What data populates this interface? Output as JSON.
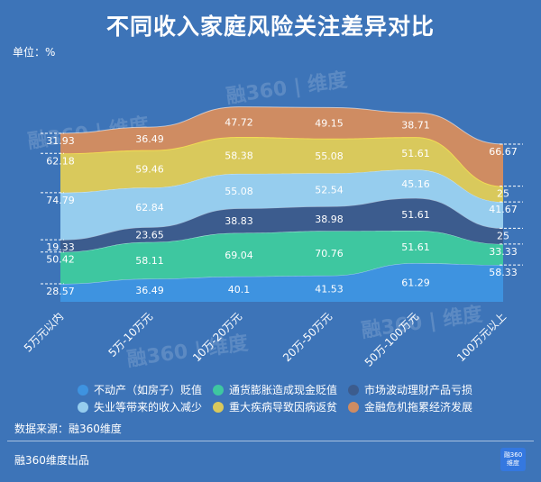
{
  "title": "不同收入家庭风险关注差异对比",
  "unit_label": "单位：%",
  "source_label": "数据来源：融360维度",
  "footer_label": "融360维度出品",
  "logo": {
    "line1": "融360",
    "line2": "维度"
  },
  "watermark": "融360 | 维度",
  "colors": {
    "background": "#3d74b8",
    "s1": "#3e93e0",
    "s2": "#3ec7a0",
    "s3": "#3c5c8e",
    "s4": "#96cdee",
    "s5": "#d9c95c",
    "s6": "#cf8c62"
  },
  "chart_data": {
    "type": "area",
    "stacked": true,
    "categories": [
      "5万元以内",
      "5万-10万元",
      "10万-20万元",
      "20万-50万元",
      "50万-100万元",
      "100万元以上"
    ],
    "series": [
      {
        "name": "不动产（如房子）贬值",
        "values": [
          28.57,
          36.49,
          40.1,
          41.53,
          61.29,
          58.33
        ]
      },
      {
        "name": "通货膨胀造成现金贬值",
        "values": [
          50.42,
          58.11,
          69.04,
          70.76,
          51.61,
          33.33
        ]
      },
      {
        "name": "市场波动理财产品亏损",
        "values": [
          19.33,
          23.65,
          38.83,
          38.98,
          51.61,
          25
        ]
      },
      {
        "name": "失业等带来的收入减少",
        "values": [
          74.79,
          62.84,
          55.08,
          52.54,
          45.16,
          41.67
        ]
      },
      {
        "name": "重大疾病导致因病返贫",
        "values": [
          62.18,
          59.46,
          58.38,
          55.08,
          51.61,
          25
        ]
      },
      {
        "name": "金融危机拖累经济发展",
        "values": [
          31.93,
          36.49,
          47.72,
          49.15,
          38.71,
          66.67
        ]
      }
    ],
    "legend_position": "bottom",
    "grid": false
  }
}
